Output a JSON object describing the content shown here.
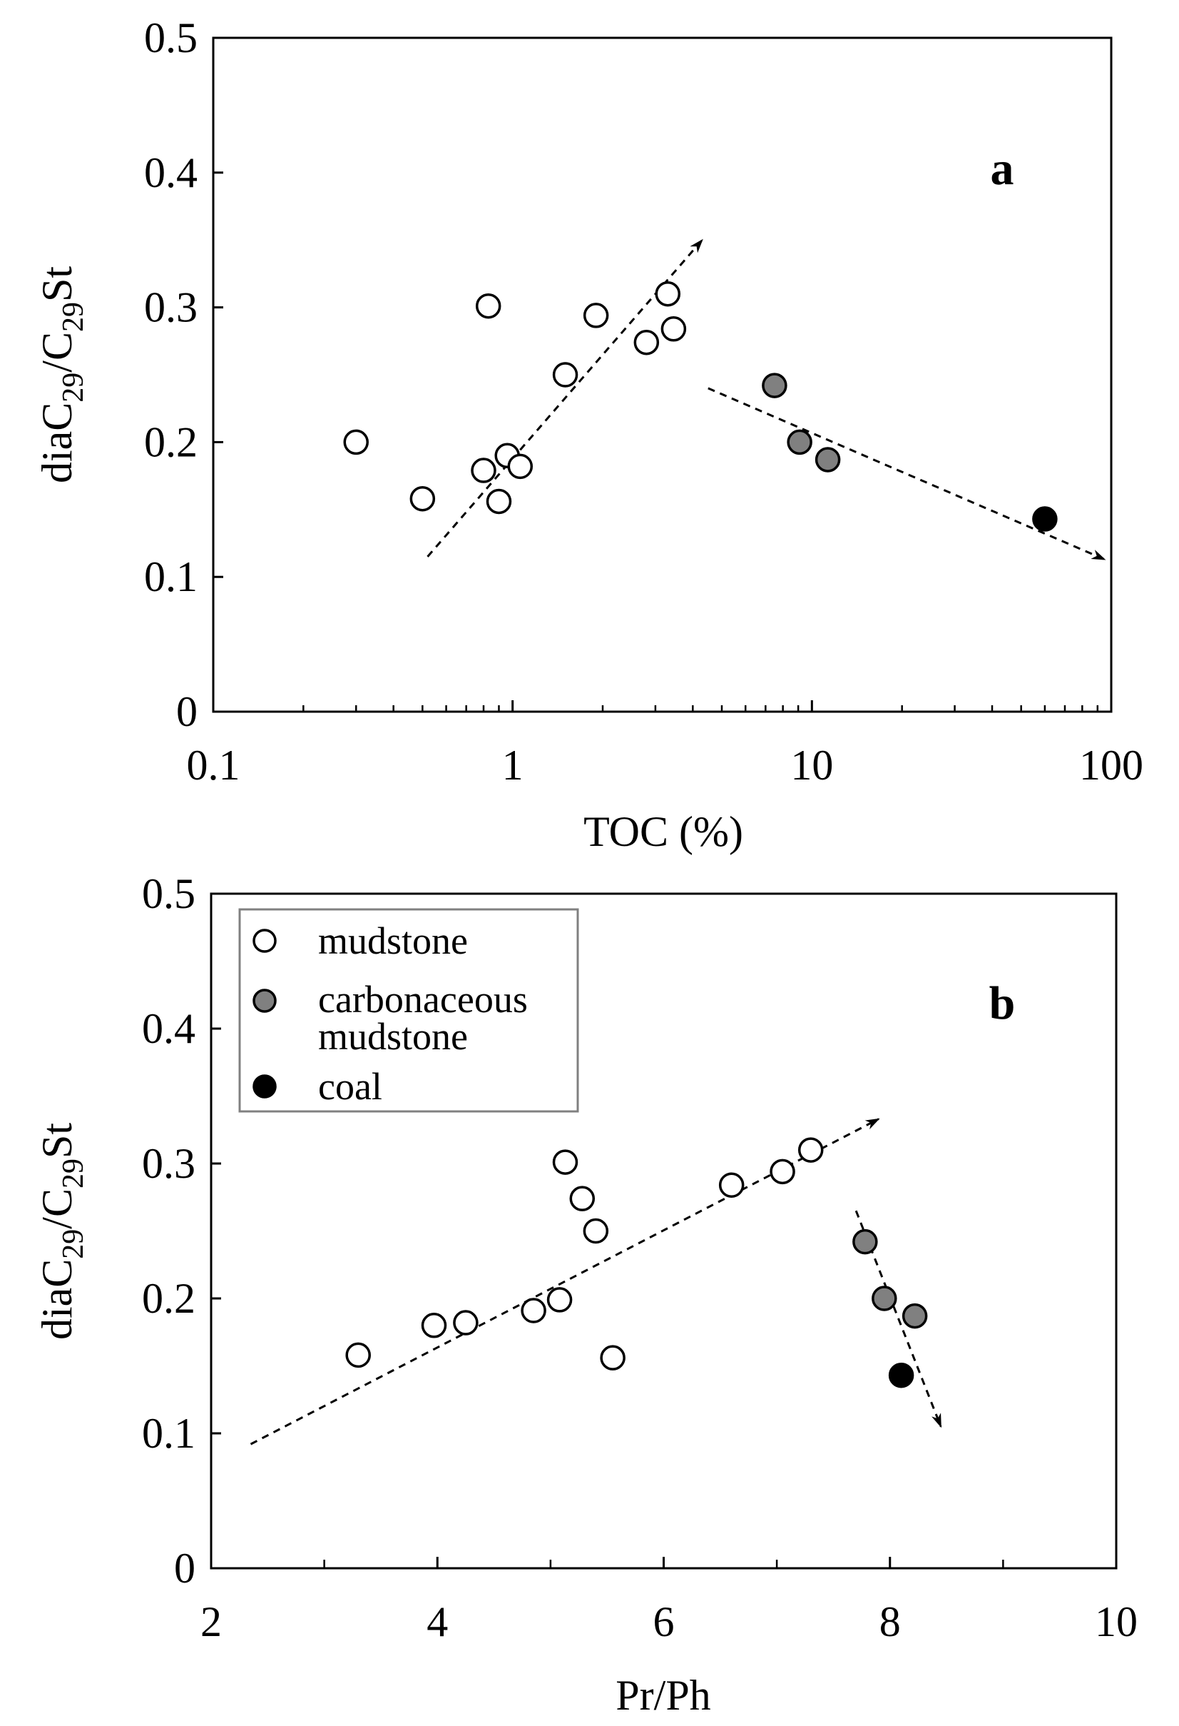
{
  "chart_data": [
    {
      "type": "scatter",
      "panel_label": "a",
      "xlabel": "TOC (%)",
      "ylabel": {
        "base": "diaC",
        "sub1": "29",
        "mid": "/C",
        "sub2": "29",
        "end": "St"
      },
      "xscale": "log",
      "xlim": [
        0.1,
        100
      ],
      "ylim": [
        0,
        0.5
      ],
      "xticks": [
        0.1,
        1,
        10,
        100
      ],
      "xtick_labels": [
        "0.1",
        "1",
        "10",
        "100"
      ],
      "yticks": [
        0,
        0.1,
        0.2,
        0.3,
        0.4,
        0.5
      ],
      "ytick_labels": [
        "0",
        "0.1",
        "0.2",
        "0.3",
        "0.4",
        "0.5"
      ],
      "series": [
        {
          "name": "mudstone",
          "color": "#ffffff",
          "points": [
            [
              0.3,
              0.2
            ],
            [
              0.5,
              0.158
            ],
            [
              0.8,
              0.179
            ],
            [
              0.83,
              0.301
            ],
            [
              0.9,
              0.156
            ],
            [
              0.96,
              0.19
            ],
            [
              1.06,
              0.182
            ],
            [
              1.5,
              0.25
            ],
            [
              1.9,
              0.294
            ],
            [
              2.8,
              0.274
            ],
            [
              3.3,
              0.31
            ],
            [
              3.45,
              0.284
            ]
          ]
        },
        {
          "name": "carbonaceous mudstone",
          "color": "#808080",
          "points": [
            [
              7.5,
              0.242
            ],
            [
              9.1,
              0.2
            ],
            [
              11.3,
              0.187
            ]
          ]
        },
        {
          "name": "coal",
          "color": "#000000",
          "points": [
            [
              60,
              0.143
            ]
          ]
        }
      ],
      "trend_arrows": [
        {
          "from": [
            0.52,
            0.115
          ],
          "to": [
            4.3,
            0.35
          ]
        },
        {
          "from": [
            4.5,
            0.24
          ],
          "to": [
            95,
            0.113
          ]
        }
      ]
    },
    {
      "type": "scatter",
      "panel_label": "b",
      "xlabel": "Pr/Ph",
      "ylabel": {
        "base": "diaC",
        "sub1": "29",
        "mid": "/C",
        "sub2": "29",
        "end": "St"
      },
      "xscale": "linear",
      "xlim": [
        2,
        10
      ],
      "ylim": [
        0,
        0.5
      ],
      "xticks": [
        2,
        4,
        6,
        8,
        10
      ],
      "xtick_labels": [
        "2",
        "4",
        "6",
        "8",
        "10"
      ],
      "xminor": [
        3,
        5,
        7,
        9
      ],
      "yticks": [
        0,
        0.1,
        0.2,
        0.3,
        0.4,
        0.5
      ],
      "ytick_labels": [
        "0",
        "0.1",
        "0.2",
        "0.3",
        "0.4",
        "0.5"
      ],
      "series": [
        {
          "name": "mudstone",
          "color": "#ffffff",
          "points": [
            [
              3.3,
              0.158
            ],
            [
              3.97,
              0.18
            ],
            [
              4.25,
              0.182
            ],
            [
              4.85,
              0.191
            ],
            [
              5.08,
              0.199
            ],
            [
              5.13,
              0.301
            ],
            [
              5.28,
              0.274
            ],
            [
              5.4,
              0.25
            ],
            [
              5.55,
              0.156
            ],
            [
              6.6,
              0.284
            ],
            [
              7.05,
              0.294
            ],
            [
              7.3,
              0.31
            ]
          ]
        },
        {
          "name": "carbonaceous mudstone",
          "color": "#808080",
          "points": [
            [
              7.78,
              0.242
            ],
            [
              7.95,
              0.2
            ],
            [
              8.22,
              0.187
            ]
          ]
        },
        {
          "name": "coal",
          "color": "#000000",
          "points": [
            [
              8.1,
              0.143
            ]
          ]
        }
      ],
      "trend_arrows": [
        {
          "from": [
            2.35,
            0.092
          ],
          "to": [
            7.9,
            0.333
          ]
        },
        {
          "from": [
            7.7,
            0.265
          ],
          "to": [
            8.45,
            0.105
          ]
        }
      ],
      "legend": {
        "placement": "top-left",
        "entries": [
          {
            "label": "mudstone",
            "color": "#ffffff"
          },
          {
            "label": "carbonaceous",
            "label2": "mudstone",
            "color": "#808080"
          },
          {
            "label": "coal",
            "color": "#000000"
          }
        ]
      }
    }
  ]
}
